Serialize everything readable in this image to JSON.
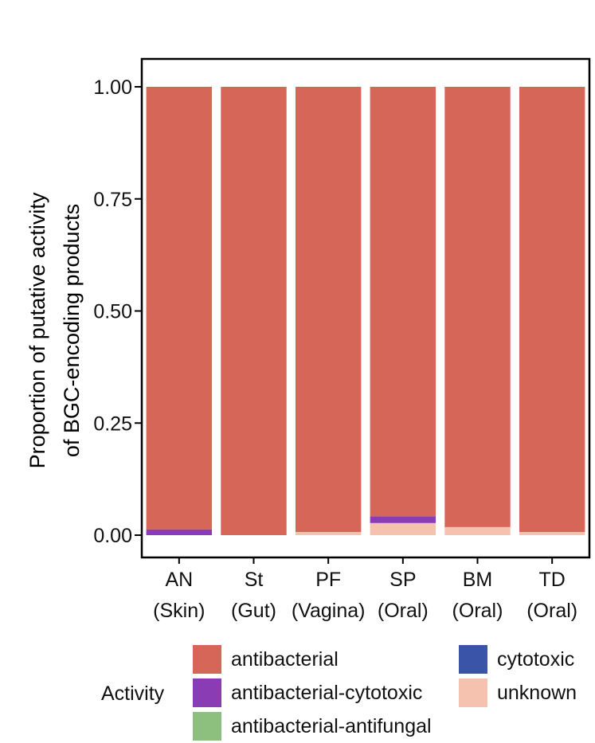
{
  "chart_data": {
    "type": "bar",
    "stacked": true,
    "categories": [
      "AN",
      "St",
      "PF",
      "SP",
      "BM",
      "TD"
    ],
    "category_sublabels": [
      "(Skin)",
      "(Gut)",
      "(Vagina)",
      "(Oral)",
      "(Oral)",
      "(Oral)"
    ],
    "ylabel_lines": [
      "Proportion of putative activity",
      "of BGC-encoding products"
    ],
    "ylim": [
      0,
      1
    ],
    "yticks": [
      "0.00",
      "0.25",
      "0.50",
      "0.75",
      "1.00"
    ],
    "series": [
      {
        "name": "unknown",
        "color": "#F4C2AE",
        "values": [
          0.0,
          0.0,
          0.007,
          0.027,
          0.018,
          0.007
        ]
      },
      {
        "name": "cytotoxic",
        "color": "#3A55A8",
        "values": [
          0.0,
          0.0,
          0.0,
          0.0,
          0.0,
          0.0
        ]
      },
      {
        "name": "antibacterial-antifungal",
        "color": "#8DC07E",
        "values": [
          0.0,
          0.0,
          0.0,
          0.0,
          0.0,
          0.0
        ]
      },
      {
        "name": "antibacterial-cytotoxic",
        "color": "#8A3CB5",
        "values": [
          0.013,
          0.0,
          0.0,
          0.015,
          0.0,
          0.0
        ]
      },
      {
        "name": "antibacterial",
        "color": "#D66657",
        "values": [
          0.987,
          1.0,
          0.993,
          0.958,
          0.982,
          0.993
        ]
      }
    ],
    "legend": {
      "title": "Activity",
      "placement": "bottom",
      "entries": [
        {
          "name": "antibacterial",
          "color": "#D66657"
        },
        {
          "name": "antibacterial-cytotoxic",
          "color": "#8A3CB5"
        },
        {
          "name": "antibacterial-antifungal",
          "color": "#8DC07E"
        },
        {
          "name": "cytotoxic",
          "color": "#3A55A8"
        },
        {
          "name": "unknown",
          "color": "#F4C2AE"
        }
      ]
    },
    "grid": false
  }
}
